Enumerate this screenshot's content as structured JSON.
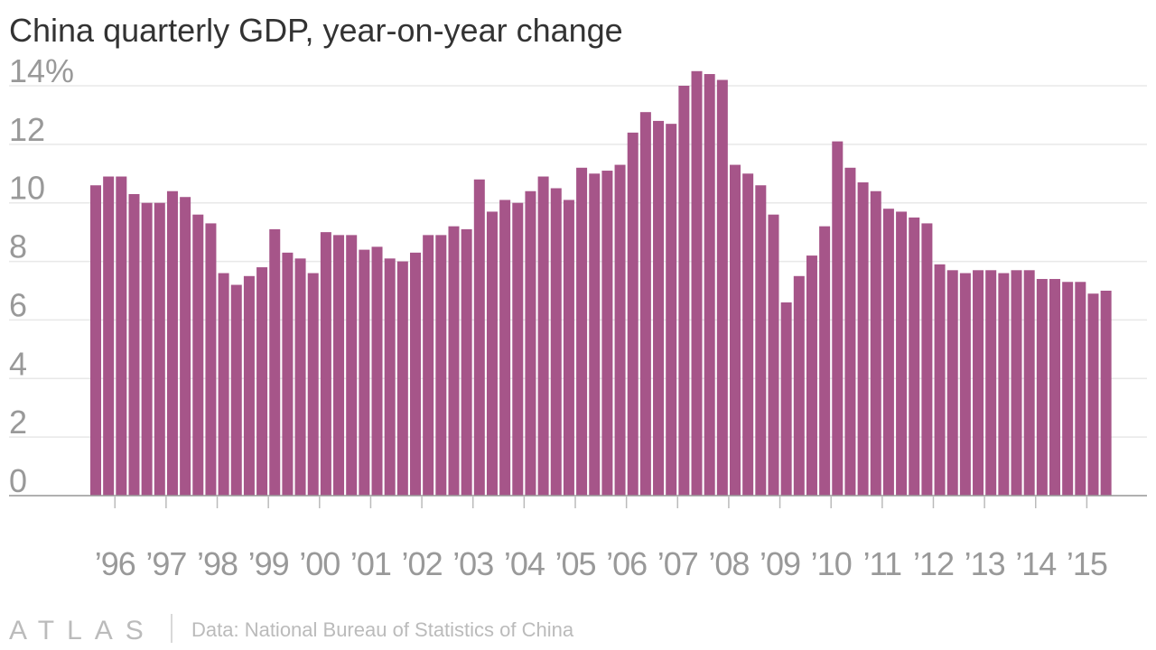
{
  "chart_data": {
    "type": "bar",
    "title": "China quarterly GDP, year-on-year change",
    "source": "Data: National Bureau of Statistics of China",
    "brand": "ATLAS",
    "color": "#a65589",
    "categories": [
      null,
      "’96",
      null,
      null,
      null,
      "’97",
      null,
      null,
      null,
      "’98",
      null,
      null,
      null,
      "’99",
      null,
      null,
      null,
      "’00",
      null,
      null,
      null,
      "’01",
      null,
      null,
      null,
      "’02",
      null,
      null,
      null,
      "’03",
      null,
      null,
      null,
      "’04",
      null,
      null,
      null,
      "’05",
      null,
      null,
      null,
      "’06",
      null,
      null,
      null,
      "’07",
      null,
      null,
      null,
      "’08",
      null,
      null,
      null,
      "’09",
      null,
      null,
      null,
      "’10",
      null,
      null,
      null,
      "’11",
      null,
      null,
      null,
      "’12",
      null,
      null,
      null,
      "’13",
      null,
      null,
      null,
      "’14",
      null,
      null,
      null,
      "’15",
      null,
      null
    ],
    "values": [
      10.6,
      10.9,
      10.9,
      10.3,
      10.0,
      10.0,
      10.4,
      10.2,
      9.6,
      9.3,
      7.6,
      7.2,
      7.5,
      7.8,
      9.1,
      8.3,
      8.1,
      7.6,
      9.0,
      8.9,
      8.9,
      8.4,
      8.5,
      8.1,
      8.0,
      8.3,
      8.9,
      8.9,
      9.2,
      9.1,
      10.8,
      9.7,
      10.1,
      10.0,
      10.4,
      10.9,
      10.5,
      10.1,
      11.2,
      11.0,
      11.1,
      11.3,
      12.4,
      13.1,
      12.8,
      12.7,
      14.0,
      14.5,
      14.4,
      14.2,
      11.3,
      11.0,
      10.6,
      9.6,
      6.6,
      7.5,
      8.2,
      9.2,
      12.1,
      11.2,
      10.7,
      10.4,
      9.8,
      9.7,
      9.5,
      9.3,
      7.9,
      7.7,
      7.6,
      7.7,
      7.7,
      7.6,
      7.7,
      7.7,
      7.4,
      7.4,
      7.3,
      7.3,
      6.9,
      7.0
    ],
    "ylim": [
      0,
      14.5
    ],
    "yticks": [
      0,
      2,
      4,
      6,
      8,
      10,
      12,
      {
        "value": 14,
        "label": "14%"
      }
    ],
    "grid": true
  }
}
